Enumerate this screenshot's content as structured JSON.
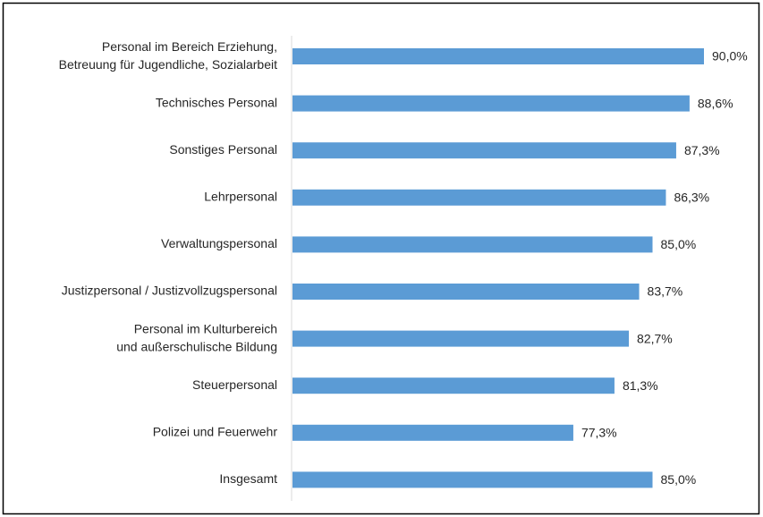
{
  "chart_data": {
    "type": "bar",
    "orientation": "horizontal",
    "categories": [
      "Personal im Bereich Erziehung,\nBetreuung für Jugendliche, Sozialarbeit",
      "Technisches Personal",
      "Sonstiges Personal",
      "Lehrpersonal",
      "Verwaltungspersonal",
      "Justizpersonal / Justizvollzugspersonal",
      "Personal im Kulturbereich\nund außerschulische Bildung",
      "Steuerpersonal",
      "Polizei und Feuerwehr",
      "Insgesamt"
    ],
    "values": [
      90.0,
      88.6,
      87.3,
      86.3,
      85.0,
      83.7,
      82.7,
      81.3,
      77.3,
      85.0
    ],
    "value_labels": [
      "90,0%",
      "88,6%",
      "87,3%",
      "86,3%",
      "85,0%",
      "83,7%",
      "82,7%",
      "81,3%",
      "77,3%",
      "85,0%"
    ],
    "color": "#5b9bd5",
    "xlim": [
      50,
      95
    ]
  }
}
